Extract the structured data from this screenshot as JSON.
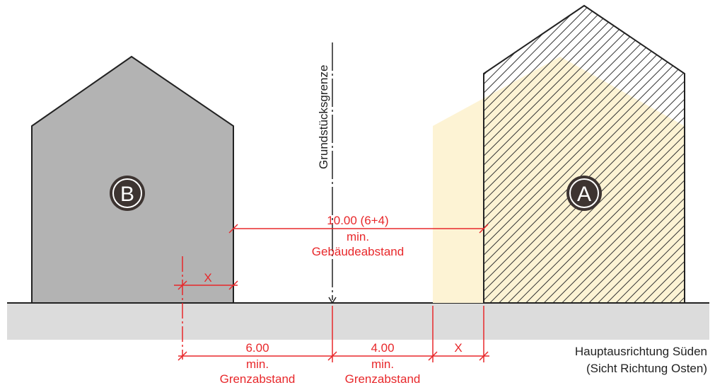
{
  "colors": {
    "building_b_fill": "#b3b3b3",
    "building_a_hatch": "#333333",
    "projection_fill": "#fdf3d4",
    "ground_fill": "#dcdcdc",
    "dimension_red": "#e8282b",
    "badge_fill": "#3d3431"
  },
  "boundary": {
    "label": "Grundstücksgrenze"
  },
  "buildings": {
    "b": {
      "label": "B"
    },
    "a": {
      "label": "A"
    }
  },
  "dimensions": {
    "gebaeudeabstand": {
      "value": "10.00 (6+4)",
      "min": "min.",
      "label": "Gebäudeabstand"
    },
    "x_left": {
      "label": "X"
    },
    "grenz_left": {
      "value": "6.00",
      "min": "min.",
      "label": "Grenzabstand"
    },
    "grenz_right": {
      "value": "4.00",
      "min": "min.",
      "label": "Grenzabstand"
    },
    "x_right": {
      "label": "X"
    }
  },
  "orientation": {
    "line1": "Hauptausrichtung Süden",
    "line2": "(Sicht Richtung Osten)"
  }
}
